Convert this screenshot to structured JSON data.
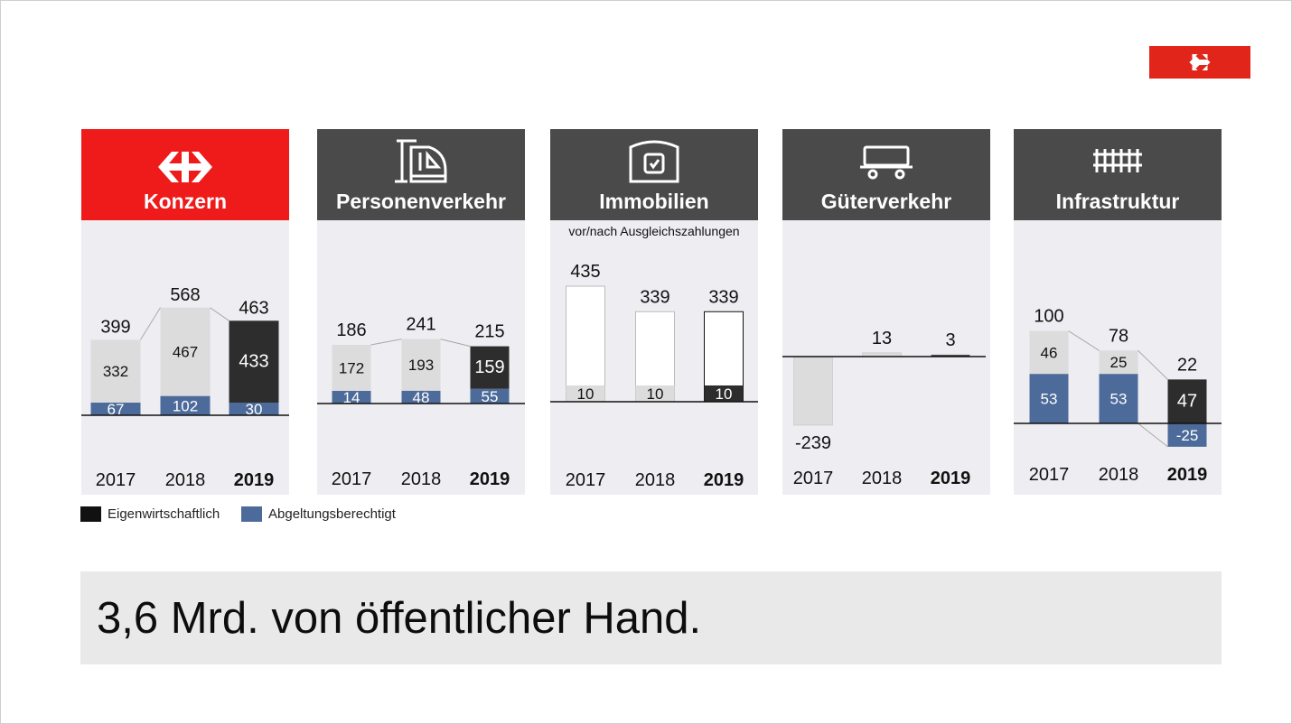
{
  "brand": {
    "logo_icon": "sbb-cross-arrows-icon",
    "logo_color": "#e1251b"
  },
  "colors": {
    "eigen": "#2d2d2d",
    "abgeltung": "#4d6b9a",
    "prior_year": "#dcdcdc",
    "header_red": "#ef1a1a",
    "header_gray": "#4a4a4a",
    "panel_bg": "#eeeef2"
  },
  "legend": {
    "eigen_label": "Eigenwirtschaftlich",
    "abgeltung_label": "Abgeltungsberechtigt"
  },
  "banner": {
    "text": "3,6 Mrd. von öffentlicher Hand."
  },
  "chart_data": [
    {
      "type": "bar",
      "title": "Konzern",
      "icon": "sbb-cross-arrows-icon",
      "categories": [
        "2017",
        "2018",
        "2019"
      ],
      "series": [
        {
          "name": "Eigenwirtschaftlich",
          "values": [
            332,
            467,
            433
          ]
        },
        {
          "name": "Abgeltungsberechtigt",
          "values": [
            67,
            102,
            30
          ]
        }
      ],
      "totals": [
        399,
        568,
        463
      ],
      "ylim": [
        0,
        568
      ]
    },
    {
      "type": "bar",
      "title": "Personenverkehr",
      "icon": "train-icon",
      "categories": [
        "2017",
        "2018",
        "2019"
      ],
      "series": [
        {
          "name": "Eigenwirtschaftlich",
          "values": [
            172,
            193,
            159
          ]
        },
        {
          "name": "Abgeltungsberechtigt",
          "values": [
            14,
            48,
            55
          ]
        }
      ],
      "totals": [
        186,
        241,
        215
      ],
      "ylim": [
        0,
        241
      ]
    },
    {
      "type": "bar",
      "title": "Immobilien",
      "subtitle": "vor/nach Ausgleichszahlungen",
      "icon": "station-clock-icon",
      "categories": [
        "2017",
        "2018",
        "2019"
      ],
      "bars": [
        435,
        339,
        339
      ],
      "inner": [
        10,
        10,
        10
      ],
      "ylim": [
        0,
        435
      ]
    },
    {
      "type": "bar",
      "title": "Güterverkehr",
      "icon": "freight-wagon-icon",
      "categories": [
        "2017",
        "2018",
        "2019"
      ],
      "values": [
        -239,
        13,
        3
      ],
      "ylim": [
        -239,
        13
      ]
    },
    {
      "type": "bar",
      "title": "Infrastruktur",
      "icon": "railway-track-icon",
      "categories": [
        "2017",
        "2018",
        "2019"
      ],
      "series": [
        {
          "name": "Eigenwirtschaftlich",
          "values": [
            46,
            25,
            47
          ]
        },
        {
          "name": "Abgeltungsberechtigt",
          "values": [
            53,
            53,
            -25
          ]
        }
      ],
      "totals": [
        100,
        78,
        22
      ],
      "ylim": [
        -25,
        100
      ]
    }
  ]
}
